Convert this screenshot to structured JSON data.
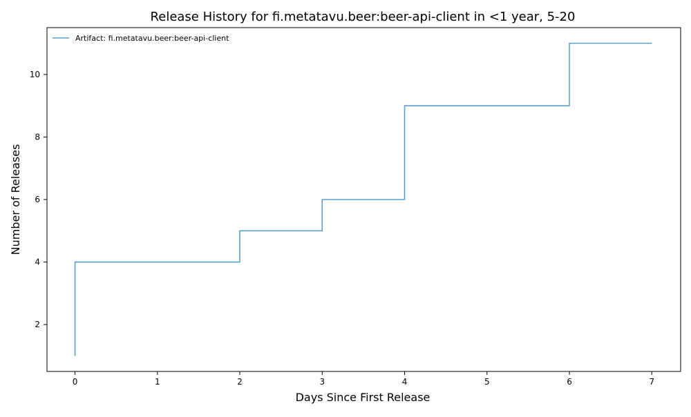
{
  "chart_data": {
    "type": "line",
    "step": true,
    "title": "Release History for fi.metatavu.beer:beer-api-client in <1 year, 5-20",
    "xlabel": "Days Since First Release",
    "ylabel": "Number of Releases",
    "xlim": [
      -0.34,
      7.35
    ],
    "ylim": [
      0.5,
      11.5
    ],
    "xticks": [
      0,
      1,
      2,
      3,
      4,
      5,
      6,
      7
    ],
    "yticks": [
      2,
      4,
      6,
      8,
      10
    ],
    "grid": false,
    "legend": "top-left",
    "colors": {
      "series": "#5a9fcc"
    },
    "series": [
      {
        "name": "Artifact: fi.metatavu.beer:beer-api-client",
        "x": [
          0,
          0,
          2,
          3,
          4,
          6,
          7
        ],
        "y": [
          1,
          4,
          5,
          6,
          9,
          11,
          11
        ]
      }
    ]
  }
}
